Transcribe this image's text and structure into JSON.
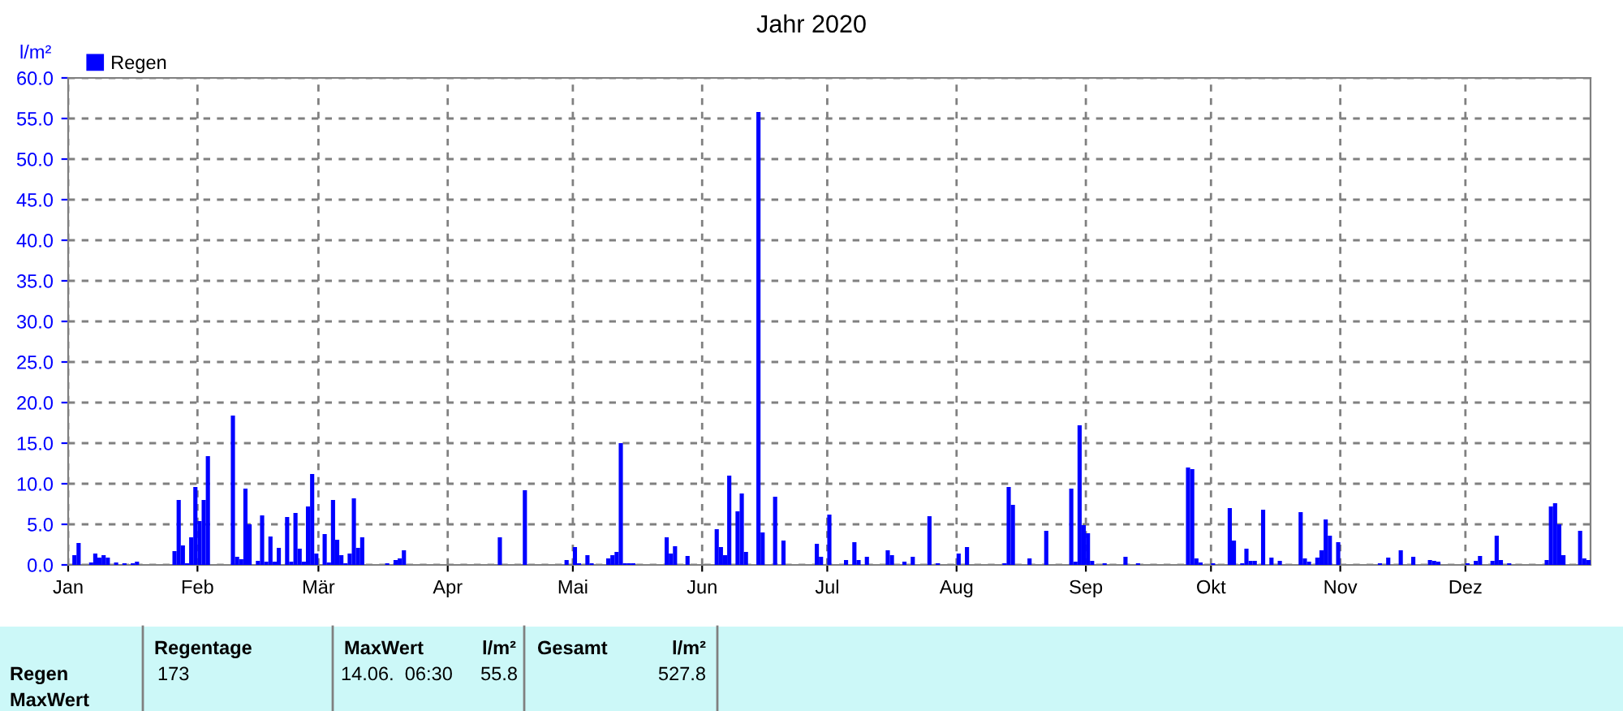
{
  "chart_data": {
    "type": "bar",
    "title": "Jahr 2020",
    "ylabel": "l/m²",
    "x": [
      "2020-01-02",
      "2020-01-03",
      "2020-01-06",
      "2020-01-07",
      "2020-01-08",
      "2020-01-09",
      "2020-01-10",
      "2020-01-12",
      "2020-01-14",
      "2020-01-16",
      "2020-01-17",
      "2020-01-26",
      "2020-01-27",
      "2020-01-28",
      "2020-01-29",
      "2020-01-30",
      "2020-01-31",
      "2020-02-01",
      "2020-02-02",
      "2020-02-03",
      "2020-02-09",
      "2020-02-10",
      "2020-02-11",
      "2020-02-12",
      "2020-02-13",
      "2020-02-15",
      "2020-02-16",
      "2020-02-17",
      "2020-02-18",
      "2020-02-19",
      "2020-02-20",
      "2020-02-22",
      "2020-02-23",
      "2020-02-24",
      "2020-02-25",
      "2020-02-26",
      "2020-02-27",
      "2020-02-28",
      "2020-02-29",
      "2020-03-02",
      "2020-03-03",
      "2020-03-04",
      "2020-03-05",
      "2020-03-06",
      "2020-03-07",
      "2020-03-08",
      "2020-03-09",
      "2020-03-10",
      "2020-03-11",
      "2020-03-17",
      "2020-03-19",
      "2020-03-20",
      "2020-03-21",
      "2020-04-13",
      "2020-04-19",
      "2020-04-29",
      "2020-05-01",
      "2020-05-02",
      "2020-05-04",
      "2020-05-05",
      "2020-05-09",
      "2020-05-10",
      "2020-05-11",
      "2020-05-12",
      "2020-05-13",
      "2020-05-14",
      "2020-05-15",
      "2020-05-23",
      "2020-05-24",
      "2020-05-25",
      "2020-05-28",
      "2020-06-04",
      "2020-06-05",
      "2020-06-06",
      "2020-06-07",
      "2020-06-09",
      "2020-06-10",
      "2020-06-11",
      "2020-06-14",
      "2020-06-15",
      "2020-06-18",
      "2020-06-20",
      "2020-06-28",
      "2020-06-29",
      "2020-07-01",
      "2020-07-05",
      "2020-07-07",
      "2020-07-08",
      "2020-07-10",
      "2020-07-15",
      "2020-07-16",
      "2020-07-19",
      "2020-07-21",
      "2020-07-25",
      "2020-07-27",
      "2020-08-01",
      "2020-08-03",
      "2020-08-12",
      "2020-08-13",
      "2020-08-14",
      "2020-08-18",
      "2020-08-22",
      "2020-08-28",
      "2020-08-29",
      "2020-08-30",
      "2020-08-31",
      "2020-09-01",
      "2020-09-02",
      "2020-09-05",
      "2020-09-10",
      "2020-09-13",
      "2020-09-25",
      "2020-09-26",
      "2020-09-27",
      "2020-09-28",
      "2020-10-01",
      "2020-10-05",
      "2020-10-06",
      "2020-10-08",
      "2020-10-09",
      "2020-10-10",
      "2020-10-11",
      "2020-10-13",
      "2020-10-15",
      "2020-10-17",
      "2020-10-22",
      "2020-10-23",
      "2020-10-24",
      "2020-10-26",
      "2020-10-27",
      "2020-10-28",
      "2020-10-29",
      "2020-10-31",
      "2020-11-10",
      "2020-11-12",
      "2020-11-15",
      "2020-11-18",
      "2020-11-22",
      "2020-11-23",
      "2020-11-24",
      "2020-12-01",
      "2020-12-03",
      "2020-12-04",
      "2020-12-07",
      "2020-12-08",
      "2020-12-09",
      "2020-12-11",
      "2020-12-20",
      "2020-12-21",
      "2020-12-22",
      "2020-12-23",
      "2020-12-24",
      "2020-12-28",
      "2020-12-29",
      "2020-12-30"
    ],
    "series": [
      {
        "name": "Regen",
        "color": "#0000ff",
        "values": [
          1.2,
          2.7,
          0.3,
          1.4,
          0.9,
          1.2,
          0.9,
          0.3,
          0.2,
          0.2,
          0.4,
          1.7,
          8.0,
          2.4,
          0.2,
          3.4,
          9.6,
          5.4,
          8.0,
          13.4,
          18.4,
          1.0,
          0.7,
          9.4,
          5.0,
          0.5,
          6.1,
          0.4,
          3.5,
          0.4,
          2.1,
          5.9,
          0.4,
          6.4,
          2.0,
          0.4,
          7.2,
          11.2,
          1.4,
          3.8,
          0.3,
          8.0,
          3.1,
          1.2,
          0.2,
          1.4,
          8.2,
          2.1,
          3.4,
          0.2,
          0.6,
          0.8,
          1.8,
          3.4,
          9.2,
          0.6,
          2.2,
          0.2,
          1.2,
          0.2,
          0.8,
          1.2,
          1.6,
          15.0,
          0.2,
          0.2,
          0.2,
          3.4,
          1.4,
          2.3,
          1.1,
          4.4,
          2.2,
          1.2,
          11.0,
          6.6,
          8.8,
          1.6,
          55.8,
          4.0,
          8.4,
          3.0,
          2.6,
          1.0,
          6.2,
          0.6,
          2.8,
          0.6,
          1.0,
          1.8,
          1.2,
          0.4,
          1.0,
          6.0,
          0.2,
          1.4,
          2.2,
          0.2,
          9.6,
          7.4,
          0.8,
          4.2,
          9.4,
          0.4,
          17.2,
          4.9,
          3.9,
          0.5,
          0.2,
          1.0,
          0.2,
          12.0,
          11.8,
          0.8,
          0.3,
          0.2,
          7.0,
          3.0,
          0.2,
          2.0,
          0.5,
          0.5,
          6.8,
          0.9,
          0.5,
          6.5,
          0.8,
          0.4,
          0.9,
          1.8,
          5.6,
          3.6,
          2.8,
          0.2,
          0.9,
          1.8,
          1.0,
          0.6,
          0.5,
          0.4,
          0.2,
          0.5,
          1.1,
          0.5,
          3.6,
          0.6,
          0.2,
          0.6,
          7.2,
          7.6,
          5.0,
          1.2,
          4.2,
          0.8,
          0.6
        ]
      }
    ],
    "xlim": [
      "2020-01-01",
      "2020-12-31"
    ],
    "xticks": [
      {
        "value": "2020-01-01",
        "label": "Jan"
      },
      {
        "value": "2020-02-01",
        "label": "Feb"
      },
      {
        "value": "2020-03-01",
        "label": "Mär"
      },
      {
        "value": "2020-04-01",
        "label": "Apr"
      },
      {
        "value": "2020-05-01",
        "label": "Mai"
      },
      {
        "value": "2020-06-01",
        "label": "Jun"
      },
      {
        "value": "2020-07-01",
        "label": "Jul"
      },
      {
        "value": "2020-08-01",
        "label": "Aug"
      },
      {
        "value": "2020-09-01",
        "label": "Sep"
      },
      {
        "value": "2020-10-01",
        "label": "Okt"
      },
      {
        "value": "2020-11-01",
        "label": "Nov"
      },
      {
        "value": "2020-12-01",
        "label": "Dez"
      }
    ],
    "ylim": [
      0,
      60
    ],
    "yticks": [
      {
        "value": 0,
        "label": "0.0"
      },
      {
        "value": 5,
        "label": "5.0"
      },
      {
        "value": 10,
        "label": "10.0"
      },
      {
        "value": 15,
        "label": "15.0"
      },
      {
        "value": 20,
        "label": "20.0"
      },
      {
        "value": 25,
        "label": "25.0"
      },
      {
        "value": 30,
        "label": "30.0"
      },
      {
        "value": 35,
        "label": "35.0"
      },
      {
        "value": 40,
        "label": "40.0"
      },
      {
        "value": 45,
        "label": "45.0"
      },
      {
        "value": 50,
        "label": "50.0"
      },
      {
        "value": 55,
        "label": "55.0"
      },
      {
        "value": 60,
        "label": "60.0"
      }
    ],
    "grid": true,
    "line_style": "dashed",
    "legend": "top left",
    "annotations": [
      "Regentage",
      "173",
      "MaxWert",
      "l/m²",
      "14.06.  06:30",
      "55.8",
      "Gesamt",
      "l/m²",
      "527.8",
      "Regen",
      "MaxWert"
    ]
  }
}
